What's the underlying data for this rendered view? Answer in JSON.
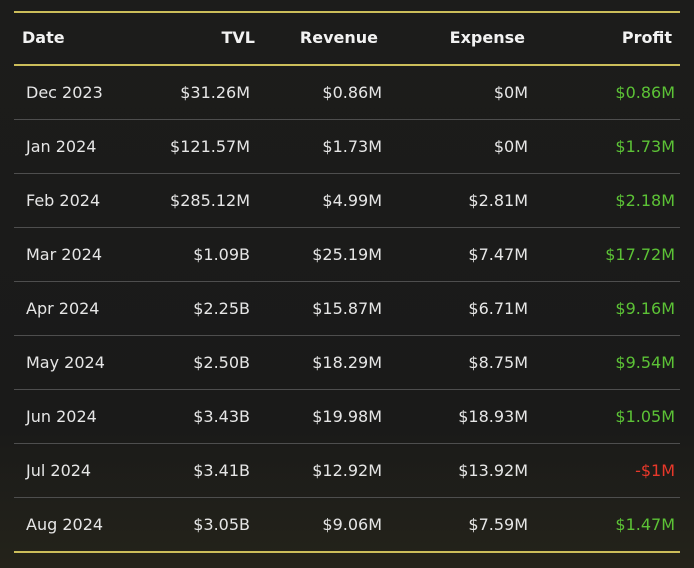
{
  "table": {
    "columns": [
      "Date",
      "TVL",
      "Revenue",
      "Expense",
      "Profit"
    ],
    "rows": [
      [
        "Dec 2023",
        "$31.26M",
        "$0.86M",
        "$0M",
        "$0.86M"
      ],
      [
        "Jan 2024",
        "$121.57M",
        "$1.73M",
        "$0M",
        "$1.73M"
      ],
      [
        "Feb 2024",
        "$285.12M",
        "$4.99M",
        "$2.81M",
        "$2.18M"
      ],
      [
        "Mar 2024",
        "$1.09B",
        "$25.19M",
        "$7.47M",
        "$17.72M"
      ],
      [
        "Apr 2024",
        "$2.25B",
        "$15.87M",
        "$6.71M",
        "$9.16M"
      ],
      [
        "May 2024",
        "$2.50B",
        "$18.29M",
        "$8.75M",
        "$9.54M"
      ],
      [
        "Jun 2024",
        "$3.43B",
        "$19.98M",
        "$18.93M",
        "$1.05M"
      ],
      [
        "Jul 2024",
        "$3.41B",
        "$12.92M",
        "$13.92M",
        "-$1M"
      ],
      [
        "Aug 2024",
        "$3.05B",
        "$9.06M",
        "$7.59M",
        "$1.47M"
      ]
    ]
  }
}
